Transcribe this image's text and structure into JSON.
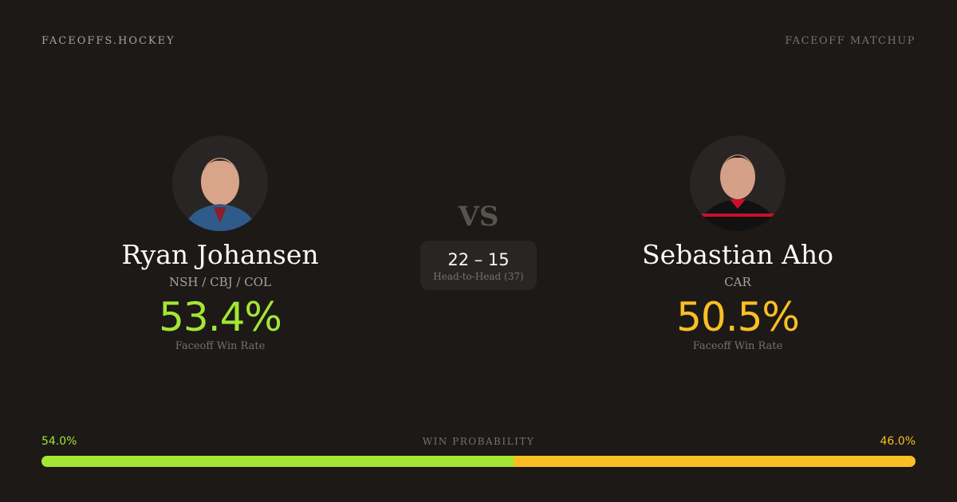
{
  "header": {
    "brand": "FACEOFFS.HOCKEY",
    "tag": "FACEOFF MATCHUP"
  },
  "colors": {
    "left": "#a3e635",
    "right": "#fbbf24",
    "background": "#1c1917"
  },
  "vs": "VS",
  "head_to_head": {
    "score": "22 – 15",
    "label": "Head-to-Head (37)"
  },
  "players": [
    {
      "name": "Ryan Johansen",
      "teams": "NSH / CBJ / COL",
      "win_rate": "53.4%",
      "win_rate_label": "Faceoff Win Rate"
    },
    {
      "name": "Sebastian Aho",
      "teams": "CAR",
      "win_rate": "50.5%",
      "win_rate_label": "Faceoff Win Rate"
    }
  ],
  "win_probability": {
    "label": "WIN PROBABILITY",
    "left": "54.0%",
    "right": "46.0%",
    "left_fraction": 0.54
  }
}
